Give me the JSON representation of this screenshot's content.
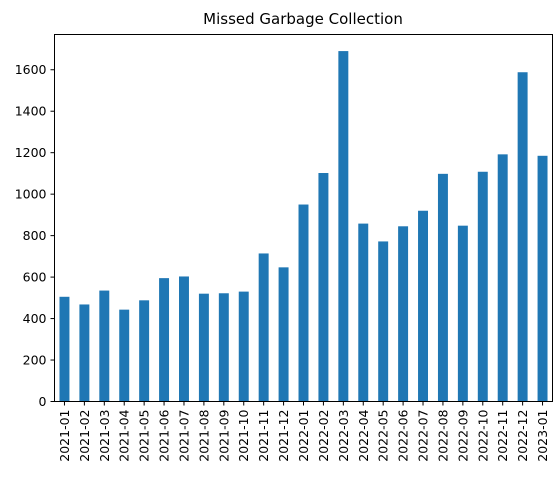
{
  "chart_data": {
    "type": "bar",
    "title": "Missed Garbage Collection",
    "xlabel": "",
    "ylabel": "",
    "categories": [
      "2021-01",
      "2021-02",
      "2021-03",
      "2021-04",
      "2021-05",
      "2021-06",
      "2021-07",
      "2021-08",
      "2021-09",
      "2021-10",
      "2021-11",
      "2021-12",
      "2022-01",
      "2022-02",
      "2022-03",
      "2022-04",
      "2022-05",
      "2022-06",
      "2022-07",
      "2022-08",
      "2022-09",
      "2022-10",
      "2022-11",
      "2022-12",
      "2023-01"
    ],
    "values": [
      505,
      468,
      535,
      443,
      488,
      595,
      603,
      520,
      522,
      530,
      714,
      647,
      950,
      1102,
      1690,
      858,
      772,
      845,
      920,
      1098,
      848,
      1108,
      1192,
      1588,
      1185
    ],
    "ylim": [
      0,
      1770
    ],
    "yticks": [
      0,
      200,
      400,
      600,
      800,
      1000,
      1200,
      1400,
      1600
    ],
    "bar_color": "#1f77b4",
    "grid": false,
    "legend": "none"
  }
}
